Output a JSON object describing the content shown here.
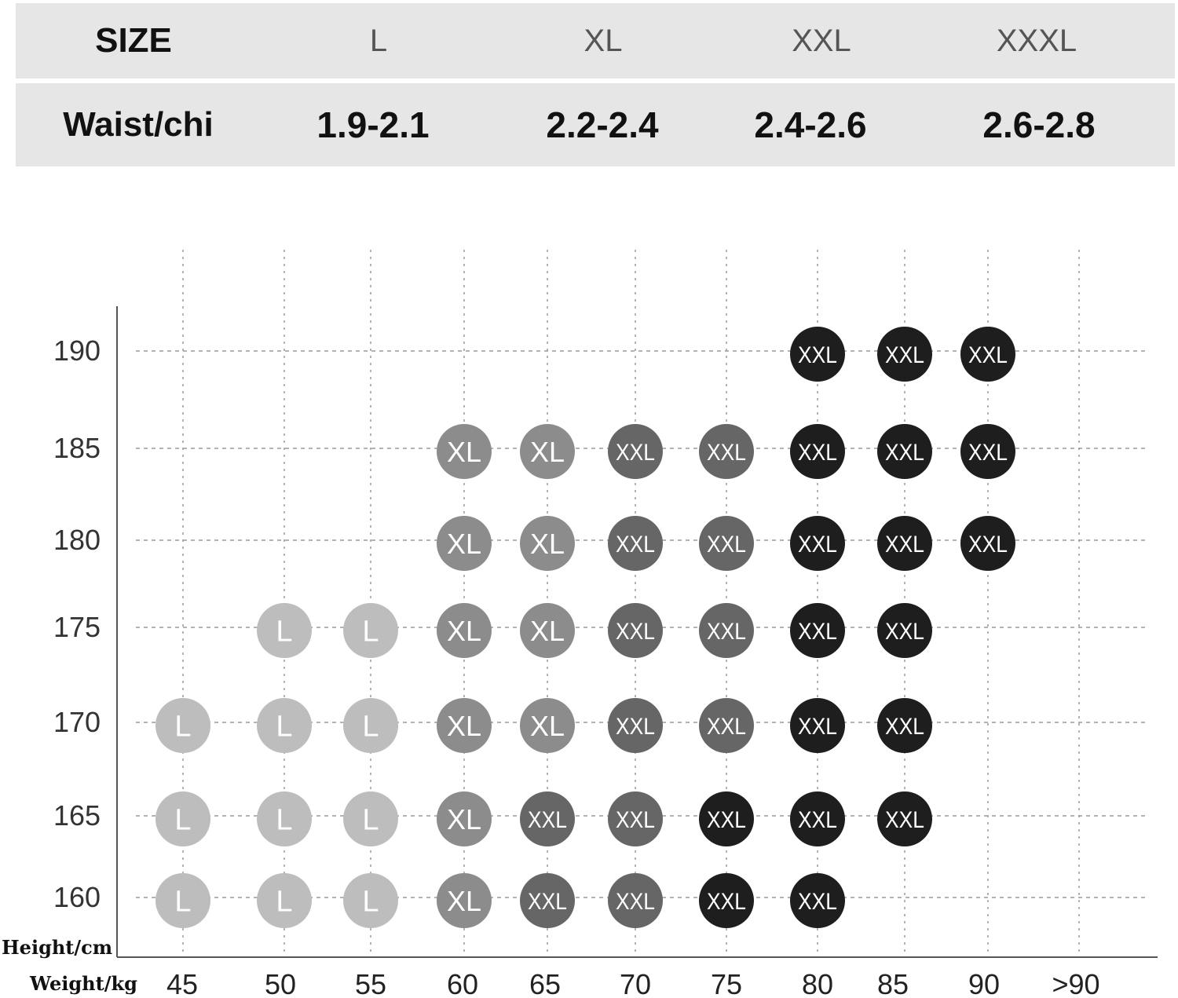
{
  "size_table": {
    "size_header": "SIZE",
    "sizes": [
      "L",
      "XL",
      "XXL",
      "XXXL"
    ],
    "waist_header": "Waist/chi",
    "waists": [
      "1.9-2.1",
      "2.2-2.4",
      "2.4-2.6",
      "2.6-2.8"
    ]
  },
  "chart_data": {
    "type": "scatter",
    "title": "",
    "xlabel": "Weight/kg",
    "ylabel": "Height/cm",
    "x_ticks": [
      "45",
      "50",
      "55",
      "60",
      "65",
      "70",
      "75",
      "80",
      "85",
      "90",
      ">90"
    ],
    "y_ticks": [
      "160",
      "165",
      "170",
      "175",
      "180",
      "185",
      "190"
    ],
    "grid": true,
    "size_colors": {
      "L": "#bdbdbd",
      "XL": "#8c8c8c",
      "XXL_mid": "#666666",
      "XXL_dark": "#1e1e1e"
    },
    "points": [
      {
        "height": "190",
        "weight": "80",
        "size": "XXL",
        "shade": "dark"
      },
      {
        "height": "190",
        "weight": "85",
        "size": "XXL",
        "shade": "dark"
      },
      {
        "height": "190",
        "weight": "90",
        "size": "XXL",
        "shade": "dark"
      },
      {
        "height": "185",
        "weight": "60",
        "size": "XL",
        "shade": "xl"
      },
      {
        "height": "185",
        "weight": "65",
        "size": "XL",
        "shade": "xl"
      },
      {
        "height": "185",
        "weight": "70",
        "size": "XXL",
        "shade": "mid"
      },
      {
        "height": "185",
        "weight": "75",
        "size": "XXL",
        "shade": "mid"
      },
      {
        "height": "185",
        "weight": "80",
        "size": "XXL",
        "shade": "dark"
      },
      {
        "height": "185",
        "weight": "85",
        "size": "XXL",
        "shade": "dark"
      },
      {
        "height": "185",
        "weight": "90",
        "size": "XXL",
        "shade": "dark"
      },
      {
        "height": "180",
        "weight": "60",
        "size": "XL",
        "shade": "xl"
      },
      {
        "height": "180",
        "weight": "65",
        "size": "XL",
        "shade": "xl"
      },
      {
        "height": "180",
        "weight": "70",
        "size": "XXL",
        "shade": "mid"
      },
      {
        "height": "180",
        "weight": "75",
        "size": "XXL",
        "shade": "mid"
      },
      {
        "height": "180",
        "weight": "80",
        "size": "XXL",
        "shade": "dark"
      },
      {
        "height": "180",
        "weight": "85",
        "size": "XXL",
        "shade": "dark"
      },
      {
        "height": "180",
        "weight": "90",
        "size": "XXL",
        "shade": "dark"
      },
      {
        "height": "175",
        "weight": "50",
        "size": "L",
        "shade": "l"
      },
      {
        "height": "175",
        "weight": "55",
        "size": "L",
        "shade": "l"
      },
      {
        "height": "175",
        "weight": "60",
        "size": "XL",
        "shade": "xl"
      },
      {
        "height": "175",
        "weight": "65",
        "size": "XL",
        "shade": "xl"
      },
      {
        "height": "175",
        "weight": "70",
        "size": "XXL",
        "shade": "mid"
      },
      {
        "height": "175",
        "weight": "75",
        "size": "XXL",
        "shade": "mid"
      },
      {
        "height": "175",
        "weight": "80",
        "size": "XXL",
        "shade": "dark"
      },
      {
        "height": "175",
        "weight": "85",
        "size": "XXL",
        "shade": "dark"
      },
      {
        "height": "170",
        "weight": "45",
        "size": "L",
        "shade": "l"
      },
      {
        "height": "170",
        "weight": "50",
        "size": "L",
        "shade": "l"
      },
      {
        "height": "170",
        "weight": "55",
        "size": "L",
        "shade": "l"
      },
      {
        "height": "170",
        "weight": "60",
        "size": "XL",
        "shade": "xl"
      },
      {
        "height": "170",
        "weight": "65",
        "size": "XL",
        "shade": "xl"
      },
      {
        "height": "170",
        "weight": "70",
        "size": "XXL",
        "shade": "mid"
      },
      {
        "height": "170",
        "weight": "75",
        "size": "XXL",
        "shade": "mid"
      },
      {
        "height": "170",
        "weight": "80",
        "size": "XXL",
        "shade": "dark"
      },
      {
        "height": "170",
        "weight": "85",
        "size": "XXL",
        "shade": "dark"
      },
      {
        "height": "165",
        "weight": "45",
        "size": "L",
        "shade": "l"
      },
      {
        "height": "165",
        "weight": "50",
        "size": "L",
        "shade": "l"
      },
      {
        "height": "165",
        "weight": "55",
        "size": "L",
        "shade": "l"
      },
      {
        "height": "165",
        "weight": "60",
        "size": "XL",
        "shade": "xl"
      },
      {
        "height": "165",
        "weight": "65",
        "size": "XXL",
        "shade": "mid"
      },
      {
        "height": "165",
        "weight": "70",
        "size": "XXL",
        "shade": "mid"
      },
      {
        "height": "165",
        "weight": "75",
        "size": "XXL",
        "shade": "dark"
      },
      {
        "height": "165",
        "weight": "80",
        "size": "XXL",
        "shade": "dark"
      },
      {
        "height": "165",
        "weight": "85",
        "size": "XXL",
        "shade": "dark"
      },
      {
        "height": "160",
        "weight": "45",
        "size": "L",
        "shade": "l"
      },
      {
        "height": "160",
        "weight": "50",
        "size": "L",
        "shade": "l"
      },
      {
        "height": "160",
        "weight": "55",
        "size": "L",
        "shade": "l"
      },
      {
        "height": "160",
        "weight": "60",
        "size": "XL",
        "shade": "xl"
      },
      {
        "height": "160",
        "weight": "65",
        "size": "XXL",
        "shade": "mid"
      },
      {
        "height": "160",
        "weight": "70",
        "size": "XXL",
        "shade": "mid"
      },
      {
        "height": "160",
        "weight": "75",
        "size": "XXL",
        "shade": "dark"
      },
      {
        "height": "160",
        "weight": "80",
        "size": "XXL",
        "shade": "dark"
      }
    ]
  }
}
